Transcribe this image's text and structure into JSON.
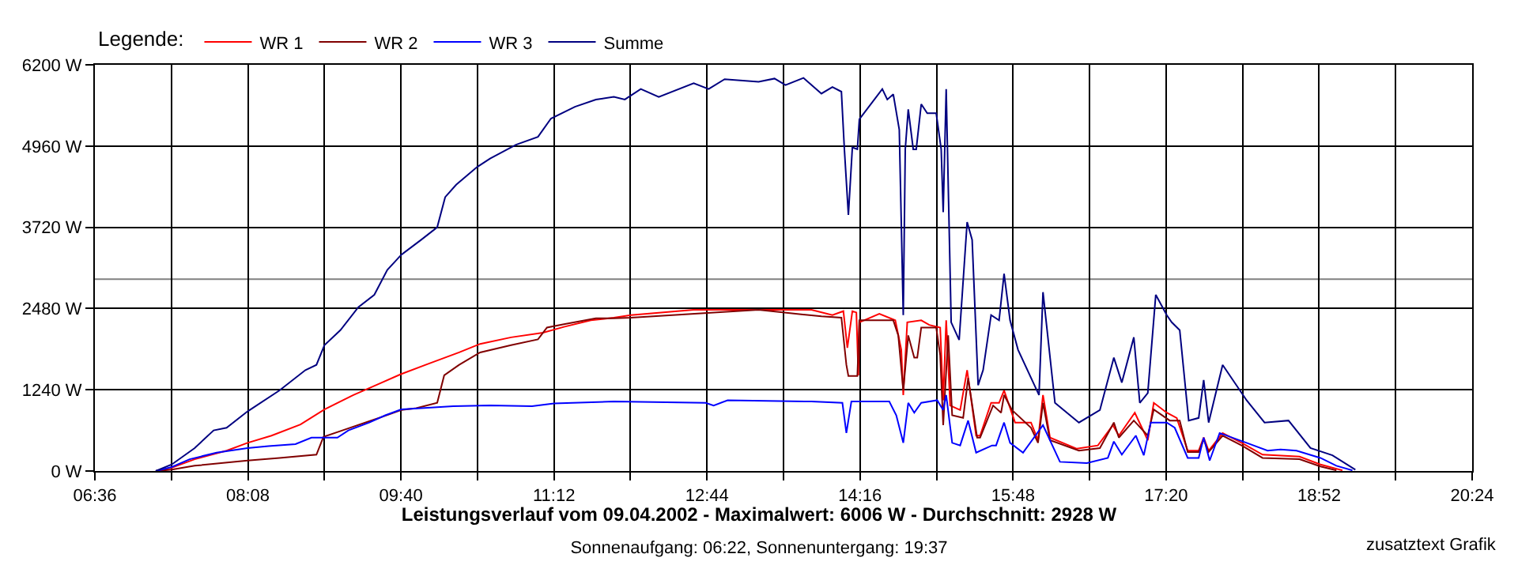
{
  "chart_data": {
    "type": "line",
    "title": "Leistungsverlauf vom 09.04.2002 - Maximalwert: 6006 W - Durchschnitt: 2928 W",
    "subtitle": "Sonnenaufgang: 06:22, Sonnenuntergang: 19:37",
    "legend_title": "Legende:",
    "annotations": [
      "zusatztext Grafik"
    ],
    "xlim": [
      6.6,
      20.4
    ],
    "xticks": [
      {
        "value": 6.6,
        "label": "06:36"
      },
      {
        "value": 7.3667,
        "label": null
      },
      {
        "value": 8.1333,
        "label": "08:08"
      },
      {
        "value": 8.9,
        "label": null
      },
      {
        "value": 9.6667,
        "label": "09:40"
      },
      {
        "value": 10.4333,
        "label": null
      },
      {
        "value": 11.2,
        "label": "11:12"
      },
      {
        "value": 11.9667,
        "label": null
      },
      {
        "value": 12.7333,
        "label": "12:44"
      },
      {
        "value": 13.5,
        "label": null
      },
      {
        "value": 14.2667,
        "label": "14:16"
      },
      {
        "value": 15.0333,
        "label": null
      },
      {
        "value": 15.8,
        "label": "15:48"
      },
      {
        "value": 16.5667,
        "label": null
      },
      {
        "value": 17.3333,
        "label": "17:20"
      },
      {
        "value": 18.1,
        "label": null
      },
      {
        "value": 18.8667,
        "label": "18:52"
      },
      {
        "value": 19.6333,
        "label": null
      },
      {
        "value": 20.4,
        "label": "20:24"
      }
    ],
    "ylim": [
      0,
      6200
    ],
    "yticks": [
      {
        "value": 0,
        "label": "0 W"
      },
      {
        "value": 1240,
        "label": "1240 W"
      },
      {
        "value": 2480,
        "label": "2480 W"
      },
      {
        "value": 3720,
        "label": "3720 W"
      },
      {
        "value": 4960,
        "label": "4960 W"
      },
      {
        "value": 6200,
        "label": "6200 W"
      }
    ],
    "grid": true,
    "legend": "top left",
    "ref_lines": [
      {
        "axis": "y",
        "value": 2928,
        "color": "#808080"
      }
    ],
    "series": [
      {
        "name": "WR 1",
        "color": "#ff0000",
        "x": [
          7.21,
          7.37,
          7.6,
          7.92,
          8.13,
          8.37,
          8.66,
          8.9,
          9.19,
          9.43,
          9.67,
          9.93,
          10.25,
          10.46,
          10.77,
          11.09,
          11.3,
          11.57,
          11.8,
          11.97,
          12.6,
          13.25,
          13.78,
          13.99,
          14.1,
          14.14,
          14.19,
          14.23,
          14.25,
          14.26,
          14.46,
          14.62,
          14.68,
          14.7,
          14.74,
          14.88,
          14.96,
          15.07,
          15.1,
          15.13,
          15.17,
          15.27,
          15.34,
          15.43,
          15.47,
          15.58,
          15.66,
          15.71,
          15.82,
          15.98,
          16.05,
          16.1,
          16.17,
          16.44,
          16.65,
          16.8,
          16.86,
          17.02,
          17.15,
          17.21,
          17.34,
          17.44,
          17.55,
          17.66,
          17.71,
          17.76,
          17.9,
          18.09,
          18.3,
          18.67,
          18.88,
          19.1
        ],
        "values": [
          0,
          50,
          180,
          310,
          430,
          540,
          710,
          940,
          1160,
          1320,
          1480,
          1630,
          1810,
          1940,
          2040,
          2110,
          2200,
          2300,
          2340,
          2380,
          2460,
          2460,
          2460,
          2380,
          2440,
          1880,
          2440,
          2420,
          1460,
          2270,
          2400,
          2300,
          1850,
          1160,
          2270,
          2300,
          2230,
          2190,
          1080,
          2300,
          1000,
          930,
          1540,
          540,
          540,
          1040,
          1040,
          1230,
          740,
          740,
          470,
          1160,
          510,
          340,
          390,
          700,
          540,
          890,
          470,
          1040,
          890,
          810,
          310,
          310,
          510,
          310,
          580,
          430,
          250,
          220,
          100,
          10
        ]
      },
      {
        "name": "WR 2",
        "color": "#800000",
        "x": [
          7.21,
          7.37,
          7.6,
          8.13,
          8.45,
          8.82,
          8.89,
          9.08,
          9.35,
          9.56,
          9.67,
          9.82,
          10.03,
          10.1,
          10.25,
          10.46,
          10.77,
          11.04,
          11.13,
          11.3,
          11.62,
          11.8,
          11.97,
          13.25,
          13.88,
          14.08,
          14.13,
          14.15,
          14.24,
          14.26,
          14.6,
          14.65,
          14.7,
          14.75,
          14.81,
          14.84,
          14.88,
          15.03,
          15.07,
          15.1,
          15.15,
          15.19,
          15.3,
          15.35,
          15.44,
          15.47,
          15.6,
          15.68,
          15.71,
          15.79,
          15.98,
          16.05,
          16.1,
          16.17,
          16.46,
          16.67,
          16.81,
          16.86,
          17.01,
          17.15,
          17.21,
          17.37,
          17.47,
          17.55,
          17.66,
          17.71,
          17.76,
          17.9,
          18.09,
          18.3,
          18.67,
          18.88,
          19.04
        ],
        "values": [
          0,
          20,
          80,
          160,
          200,
          250,
          520,
          620,
          760,
          870,
          930,
          960,
          1040,
          1460,
          1620,
          1810,
          1920,
          2010,
          2190,
          2240,
          2330,
          2330,
          2340,
          2460,
          2360,
          2340,
          1620,
          1450,
          1450,
          2300,
          2300,
          2070,
          1230,
          2070,
          1730,
          1730,
          2190,
          2190,
          1770,
          700,
          2070,
          850,
          810,
          1420,
          510,
          510,
          1000,
          890,
          1160,
          930,
          660,
          430,
          1040,
          470,
          310,
          350,
          740,
          510,
          770,
          540,
          940,
          770,
          770,
          290,
          290,
          480,
          290,
          540,
          390,
          200,
          180,
          70,
          10
        ]
      },
      {
        "name": "WR 3",
        "color": "#0000ff",
        "x": [
          7.21,
          7.37,
          7.55,
          7.82,
          8.13,
          8.34,
          8.61,
          8.77,
          9.03,
          9.14,
          9.35,
          9.51,
          9.67,
          9.87,
          10.19,
          10.56,
          10.98,
          11.2,
          11.8,
          12.72,
          12.8,
          12.94,
          13.78,
          14.09,
          14.13,
          14.18,
          14.56,
          14.63,
          14.7,
          14.75,
          14.81,
          14.88,
          15.04,
          15.1,
          15.13,
          15.19,
          15.27,
          15.35,
          15.43,
          15.59,
          15.63,
          15.71,
          15.77,
          15.9,
          16.1,
          16.27,
          16.54,
          16.75,
          16.81,
          16.89,
          17.03,
          17.11,
          17.18,
          17.34,
          17.42,
          17.55,
          17.66,
          17.71,
          17.77,
          17.87,
          18.14,
          18.35,
          18.48,
          18.64,
          18.88,
          19.04,
          19.2
        ],
        "values": [
          0,
          60,
          180,
          280,
          350,
          380,
          410,
          510,
          510,
          620,
          740,
          850,
          940,
          960,
          990,
          1000,
          990,
          1030,
          1060,
          1040,
          1000,
          1080,
          1060,
          1040,
          580,
          1060,
          1060,
          850,
          430,
          1040,
          890,
          1040,
          1080,
          930,
          1160,
          430,
          390,
          770,
          280,
          390,
          390,
          740,
          430,
          280,
          700,
          140,
          120,
          200,
          450,
          250,
          540,
          240,
          740,
          740,
          660,
          200,
          200,
          510,
          160,
          580,
          430,
          310,
          330,
          310,
          200,
          80,
          10
        ]
      },
      {
        "name": "Summe",
        "color": "#000080",
        "x": [
          7.21,
          7.37,
          7.6,
          7.79,
          7.92,
          8.13,
          8.45,
          8.71,
          8.82,
          8.9,
          9.06,
          9.24,
          9.4,
          9.53,
          9.67,
          9.87,
          10.03,
          10.11,
          10.22,
          10.43,
          10.56,
          10.82,
          11.04,
          11.17,
          11.41,
          11.62,
          11.8,
          11.91,
          12.07,
          12.25,
          12.6,
          12.75,
          12.91,
          13.25,
          13.41,
          13.52,
          13.7,
          13.88,
          13.99,
          14.08,
          14.11,
          14.15,
          14.19,
          14.24,
          14.26,
          14.49,
          14.54,
          14.6,
          14.66,
          14.7,
          14.72,
          14.75,
          14.8,
          14.83,
          14.88,
          14.94,
          15.03,
          15.08,
          15.1,
          15.13,
          15.18,
          15.26,
          15.34,
          15.39,
          15.45,
          15.5,
          15.58,
          15.66,
          15.71,
          15.77,
          15.85,
          16.06,
          16.1,
          16.22,
          16.46,
          16.67,
          16.81,
          16.89,
          17.01,
          17.07,
          17.15,
          17.23,
          17.34,
          17.39,
          17.47,
          17.56,
          17.66,
          17.71,
          17.76,
          17.9,
          18.14,
          18.32,
          18.56,
          18.78,
          19.0,
          19.23
        ],
        "values": [
          0,
          100,
          350,
          620,
          660,
          910,
          1230,
          1540,
          1620,
          1920,
          2150,
          2500,
          2690,
          3070,
          3300,
          3530,
          3720,
          4180,
          4370,
          4640,
          4770,
          4980,
          5100,
          5380,
          5560,
          5670,
          5710,
          5670,
          5830,
          5710,
          5920,
          5830,
          5980,
          5940,
          5990,
          5890,
          6000,
          5760,
          5860,
          5790,
          4910,
          3910,
          4940,
          4910,
          5370,
          5830,
          5670,
          5750,
          5210,
          2380,
          4910,
          5520,
          4910,
          4910,
          5600,
          5460,
          5460,
          4910,
          3950,
          5830,
          2270,
          2000,
          3800,
          3530,
          1310,
          1540,
          2380,
          2300,
          3010,
          2300,
          1850,
          1160,
          2730,
          1040,
          740,
          930,
          1730,
          1350,
          2040,
          1040,
          1190,
          2690,
          2380,
          2270,
          2150,
          770,
          810,
          1390,
          740,
          1620,
          1080,
          740,
          770,
          350,
          240,
          20
        ]
      }
    ]
  }
}
